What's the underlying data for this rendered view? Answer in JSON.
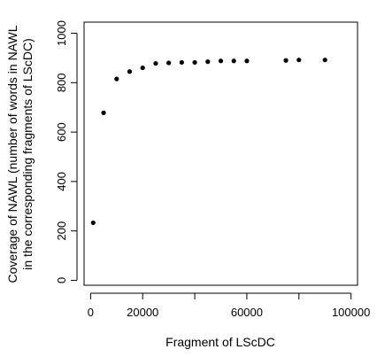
{
  "chart_data": {
    "type": "scatter",
    "title": "",
    "xlabel": "Fragment of LScDC",
    "ylabel_lines": [
      "Coverage of NAWL (number of words in NAWL",
      "in the corresponding fragments of LScDC)"
    ],
    "xlim": [
      -2500,
      102500
    ],
    "ylim": [
      -20,
      1045
    ],
    "x_ticks": [
      0,
      20000,
      40000,
      60000,
      80000,
      100000
    ],
    "x_tick_labels": [
      "0",
      "20000",
      "",
      "60000",
      "",
      "100000"
    ],
    "y_ticks": [
      0,
      200,
      400,
      600,
      800,
      1000
    ],
    "y_tick_labels": [
      "0",
      "200",
      "400",
      "600",
      "800",
      "1000"
    ],
    "grid": false,
    "series": [
      {
        "x": [
          1000,
          5000,
          10000,
          15000,
          20000,
          25000,
          30000,
          35000,
          40000,
          45000,
          50000,
          55000,
          60000,
          75000,
          80000,
          90000
        ],
        "y": [
          233,
          678,
          815,
          845,
          860,
          878,
          880,
          882,
          882,
          885,
          888,
          888,
          888,
          890,
          892,
          892
        ]
      }
    ]
  }
}
